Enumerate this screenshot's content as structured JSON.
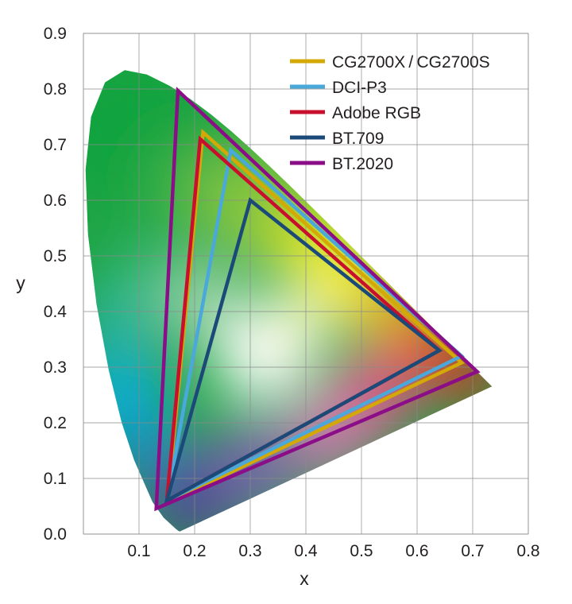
{
  "chart_data": {
    "type": "scatter",
    "xlabel": "x",
    "ylabel": "y",
    "xlim": [
      0,
      0.8
    ],
    "ylim": [
      0,
      0.9
    ],
    "x_ticks": [
      "0.1",
      "0.2",
      "0.3",
      "0.4",
      "0.5",
      "0.6",
      "0.7",
      "0.8"
    ],
    "y_ticks": [
      "0.0",
      "0.1",
      "0.2",
      "0.3",
      "0.4",
      "0.5",
      "0.6",
      "0.7",
      "0.8",
      "0.9"
    ],
    "grid": true,
    "legend_position": "top-right",
    "spectral_locus": [
      [
        0.1741,
        0.005
      ],
      [
        0.1738,
        0.0049
      ],
      [
        0.1721,
        0.0048
      ],
      [
        0.1666,
        0.0089
      ],
      [
        0.144,
        0.0297
      ],
      [
        0.1241,
        0.0578
      ],
      [
        0.0913,
        0.1327
      ],
      [
        0.0687,
        0.2007
      ],
      [
        0.0454,
        0.295
      ],
      [
        0.0235,
        0.4127
      ],
      [
        0.0082,
        0.5384
      ],
      [
        0.0039,
        0.6548
      ],
      [
        0.0139,
        0.7502
      ],
      [
        0.0389,
        0.812
      ],
      [
        0.0743,
        0.8338
      ],
      [
        0.1142,
        0.8262
      ],
      [
        0.1547,
        0.8059
      ],
      [
        0.1929,
        0.7816
      ],
      [
        0.2296,
        0.7543
      ],
      [
        0.2658,
        0.7243
      ],
      [
        0.3016,
        0.6923
      ],
      [
        0.3373,
        0.6589
      ],
      [
        0.3731,
        0.6245
      ],
      [
        0.4087,
        0.5896
      ],
      [
        0.4441,
        0.5547
      ],
      [
        0.4788,
        0.5202
      ],
      [
        0.5125,
        0.4866
      ],
      [
        0.5448,
        0.4544
      ],
      [
        0.5752,
        0.4242
      ],
      [
        0.6029,
        0.3965
      ],
      [
        0.627,
        0.3725
      ],
      [
        0.6482,
        0.3514
      ],
      [
        0.6658,
        0.334
      ],
      [
        0.6801,
        0.3197
      ],
      [
        0.6915,
        0.3083
      ],
      [
        0.7006,
        0.2993
      ],
      [
        0.7079,
        0.292
      ],
      [
        0.714,
        0.2859
      ],
      [
        0.719,
        0.2809
      ],
      [
        0.723,
        0.277
      ],
      [
        0.726,
        0.274
      ],
      [
        0.7283,
        0.2717
      ],
      [
        0.73,
        0.27
      ],
      [
        0.7347,
        0.2653
      ]
    ],
    "series": [
      {
        "name": "CG2700X / CG2700S",
        "color": "#d4a806",
        "points": [
          [
            0.215,
            0.722
          ],
          [
            0.68,
            0.308
          ],
          [
            0.151,
            0.057
          ]
        ]
      },
      {
        "name": "DCI-P3",
        "color": "#4aa8db",
        "points": [
          [
            0.265,
            0.69
          ],
          [
            0.68,
            0.32
          ],
          [
            0.15,
            0.06
          ]
        ]
      },
      {
        "name": "Adobe RGB",
        "color": "#c8102e",
        "points": [
          [
            0.21,
            0.71
          ],
          [
            0.64,
            0.33
          ],
          [
            0.15,
            0.06
          ]
        ]
      },
      {
        "name": "BT.709",
        "color": "#1c4a78",
        "points": [
          [
            0.3,
            0.6
          ],
          [
            0.64,
            0.33
          ],
          [
            0.15,
            0.06
          ]
        ]
      },
      {
        "name": "BT.2020",
        "color": "#8b0d87",
        "points": [
          [
            0.17,
            0.797
          ],
          [
            0.708,
            0.292
          ],
          [
            0.131,
            0.046
          ]
        ]
      }
    ]
  }
}
